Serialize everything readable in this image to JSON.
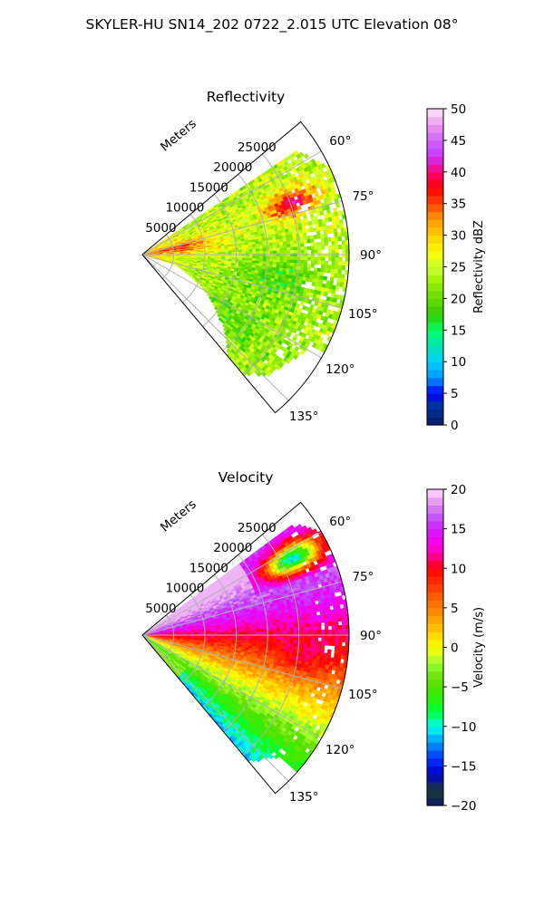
{
  "suptitle": "SKYLER-HU  SN14_202  0722_2.015 UTC Elevation 08°",
  "chart_data": [
    {
      "type": "heatmap",
      "subtype": "polar-sector",
      "title": "Reflectivity",
      "range_axis_label": "Meters",
      "range_ticks": [
        5000,
        10000,
        15000,
        20000,
        25000
      ],
      "range_tick_labels": [
        "5000",
        "10000",
        "15000",
        "20000",
        "25000"
      ],
      "range_max": 33000,
      "azimuth_range": [
        50,
        140
      ],
      "azimuth_ticks": [
        60,
        75,
        90,
        105,
        120,
        135
      ],
      "azimuth_tick_labels": [
        "60°",
        "75°",
        "90°",
        "105°",
        "120°",
        "135°"
      ],
      "grid": true,
      "colorbar": {
        "label": "Reflectivity dBZ",
        "vmin": 0,
        "vmax": 50,
        "ticks": [
          0,
          5,
          10,
          15,
          20,
          25,
          30,
          35,
          40,
          45,
          50
        ],
        "tick_labels": [
          "0",
          "5",
          "10",
          "15",
          "20",
          "25",
          "30",
          "35",
          "40",
          "45",
          "50"
        ],
        "colormap": "NWSRef",
        "stops": [
          [
            0,
            "#0a1a66"
          ],
          [
            3,
            "#003399"
          ],
          [
            5,
            "#0000ff"
          ],
          [
            7.5,
            "#0099ff"
          ],
          [
            10,
            "#00ccff"
          ],
          [
            12.5,
            "#00e6b3"
          ],
          [
            15,
            "#00ff66"
          ],
          [
            17.5,
            "#33cc00"
          ],
          [
            20,
            "#66dd00"
          ],
          [
            22.5,
            "#99ee00"
          ],
          [
            25,
            "#ccff33"
          ],
          [
            27.5,
            "#ffff00"
          ],
          [
            30,
            "#ffcc00"
          ],
          [
            32.5,
            "#ff9900"
          ],
          [
            35,
            "#ff4400"
          ],
          [
            37.5,
            "#ff0000"
          ],
          [
            40,
            "#ff0077"
          ],
          [
            42.5,
            "#cc33ff"
          ],
          [
            45,
            "#cc66ff"
          ],
          [
            47.5,
            "#ee99ee"
          ],
          [
            50,
            "#ffe6ff"
          ]
        ]
      },
      "features": [
        {
          "description": "reflectivity core",
          "azimuth": 71,
          "range": 25000,
          "value": 38
        },
        {
          "description": "near-range streaks",
          "azimuth": 80,
          "range": 7000,
          "value": 34
        },
        {
          "description": "widespread echo",
          "azimuth": 95,
          "range": 20000,
          "value": 26
        },
        {
          "description": "weak echo",
          "azimuth": 100,
          "range": 22000,
          "value": 21
        },
        {
          "description": "southern echo",
          "azimuth": 125,
          "range": 18000,
          "value": 20
        }
      ]
    },
    {
      "type": "heatmap",
      "subtype": "polar-sector",
      "title": "Velocity",
      "range_axis_label": "Meters",
      "range_ticks": [
        5000,
        10000,
        15000,
        20000,
        25000
      ],
      "range_tick_labels": [
        "5000",
        "10000",
        "15000",
        "20000",
        "25000"
      ],
      "range_max": 33000,
      "azimuth_range": [
        50,
        140
      ],
      "azimuth_ticks": [
        60,
        75,
        90,
        105,
        120,
        135
      ],
      "azimuth_tick_labels": [
        "60°",
        "75°",
        "90°",
        "105°",
        "120°",
        "135°"
      ],
      "grid": true,
      "colorbar": {
        "label": "Velocity (m/s)",
        "vmin": -20,
        "vmax": 20,
        "ticks": [
          -20,
          -15,
          -10,
          -5,
          0,
          5,
          10,
          15,
          20
        ],
        "tick_labels": [
          "−20",
          "−15",
          "−10",
          "−5",
          "0",
          "5",
          "10",
          "15",
          "20"
        ],
        "colormap": "NWSVel",
        "stops": [
          [
            -20,
            "#0a1a66"
          ],
          [
            -18,
            "#1a3a33"
          ],
          [
            -16,
            "#0000cc"
          ],
          [
            -14,
            "#0033ff"
          ],
          [
            -12,
            "#0099ff"
          ],
          [
            -10,
            "#00ffee"
          ],
          [
            -8,
            "#00ff33"
          ],
          [
            -6,
            "#33ee00"
          ],
          [
            -4,
            "#66dd00"
          ],
          [
            -2,
            "#99ff33"
          ],
          [
            0,
            "#ffff00"
          ],
          [
            2,
            "#ffcc00"
          ],
          [
            4,
            "#ff9900"
          ],
          [
            6,
            "#ff6600"
          ],
          [
            8,
            "#ff3300"
          ],
          [
            10,
            "#ff0000"
          ],
          [
            12,
            "#ff00bb"
          ],
          [
            14,
            "#ee00ff"
          ],
          [
            16,
            "#bb44ff"
          ],
          [
            18,
            "#dd88ee"
          ],
          [
            20,
            "#ffddff"
          ]
        ]
      },
      "features": [
        {
          "description": "outbound flow",
          "azimuth": 78,
          "range": 15000,
          "value": 14
        },
        {
          "description": "inbound flow pocket",
          "azimuth": 63,
          "range": 27000,
          "value": -11
        },
        {
          "description": "outbound maximum",
          "azimuth": 100,
          "range": 26000,
          "value": 10
        },
        {
          "description": "weak outbound flow",
          "azimuth": 120,
          "range": 22000,
          "value": 2
        },
        {
          "description": "weak inbound flow",
          "azimuth": 130,
          "range": 6000,
          "value": -3
        }
      ]
    }
  ]
}
